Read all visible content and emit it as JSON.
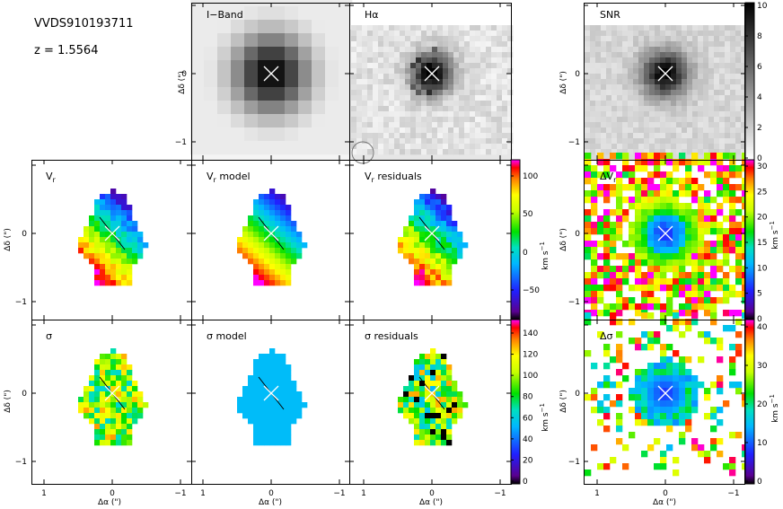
{
  "header": {
    "object_id": "VVDS910193711",
    "redshift": "z = 1.5564"
  },
  "panels": {
    "iband": "I−Band",
    "halpha": "Hα",
    "snr": "SNR",
    "vr": "V",
    "vr_sub": "r",
    "vr_model": " model",
    "vr_residuals": " residuals",
    "dvr": "ΔV",
    "sigma": "σ",
    "sigma_model": "σ model",
    "sigma_residuals": "σ residuals",
    "dsigma": "Δσ"
  },
  "axes": {
    "x_label": "Δα (\")",
    "y_label": "Δδ (\")",
    "x_ticks": [
      "1",
      "0",
      "−1"
    ],
    "y_ticks": [
      "0",
      "−1"
    ],
    "y_ticks_top": [
      "0",
      "−1"
    ]
  },
  "colorbars": {
    "unit": "km s",
    "unit_exp": "−1",
    "snr_ticks": [
      "10",
      "8",
      "6",
      "4",
      "2",
      "0"
    ],
    "vr_ticks": [
      "100",
      "50",
      "0",
      "−50"
    ],
    "sigma_ticks": [
      "140",
      "120",
      "100",
      "80",
      "60",
      "40",
      "20",
      "0"
    ],
    "dvr_ticks": [
      "30",
      "25",
      "20",
      "15",
      "10",
      "5",
      "0"
    ],
    "dsigma_ticks": [
      "40",
      "30",
      "20",
      "10",
      "0"
    ]
  }
}
